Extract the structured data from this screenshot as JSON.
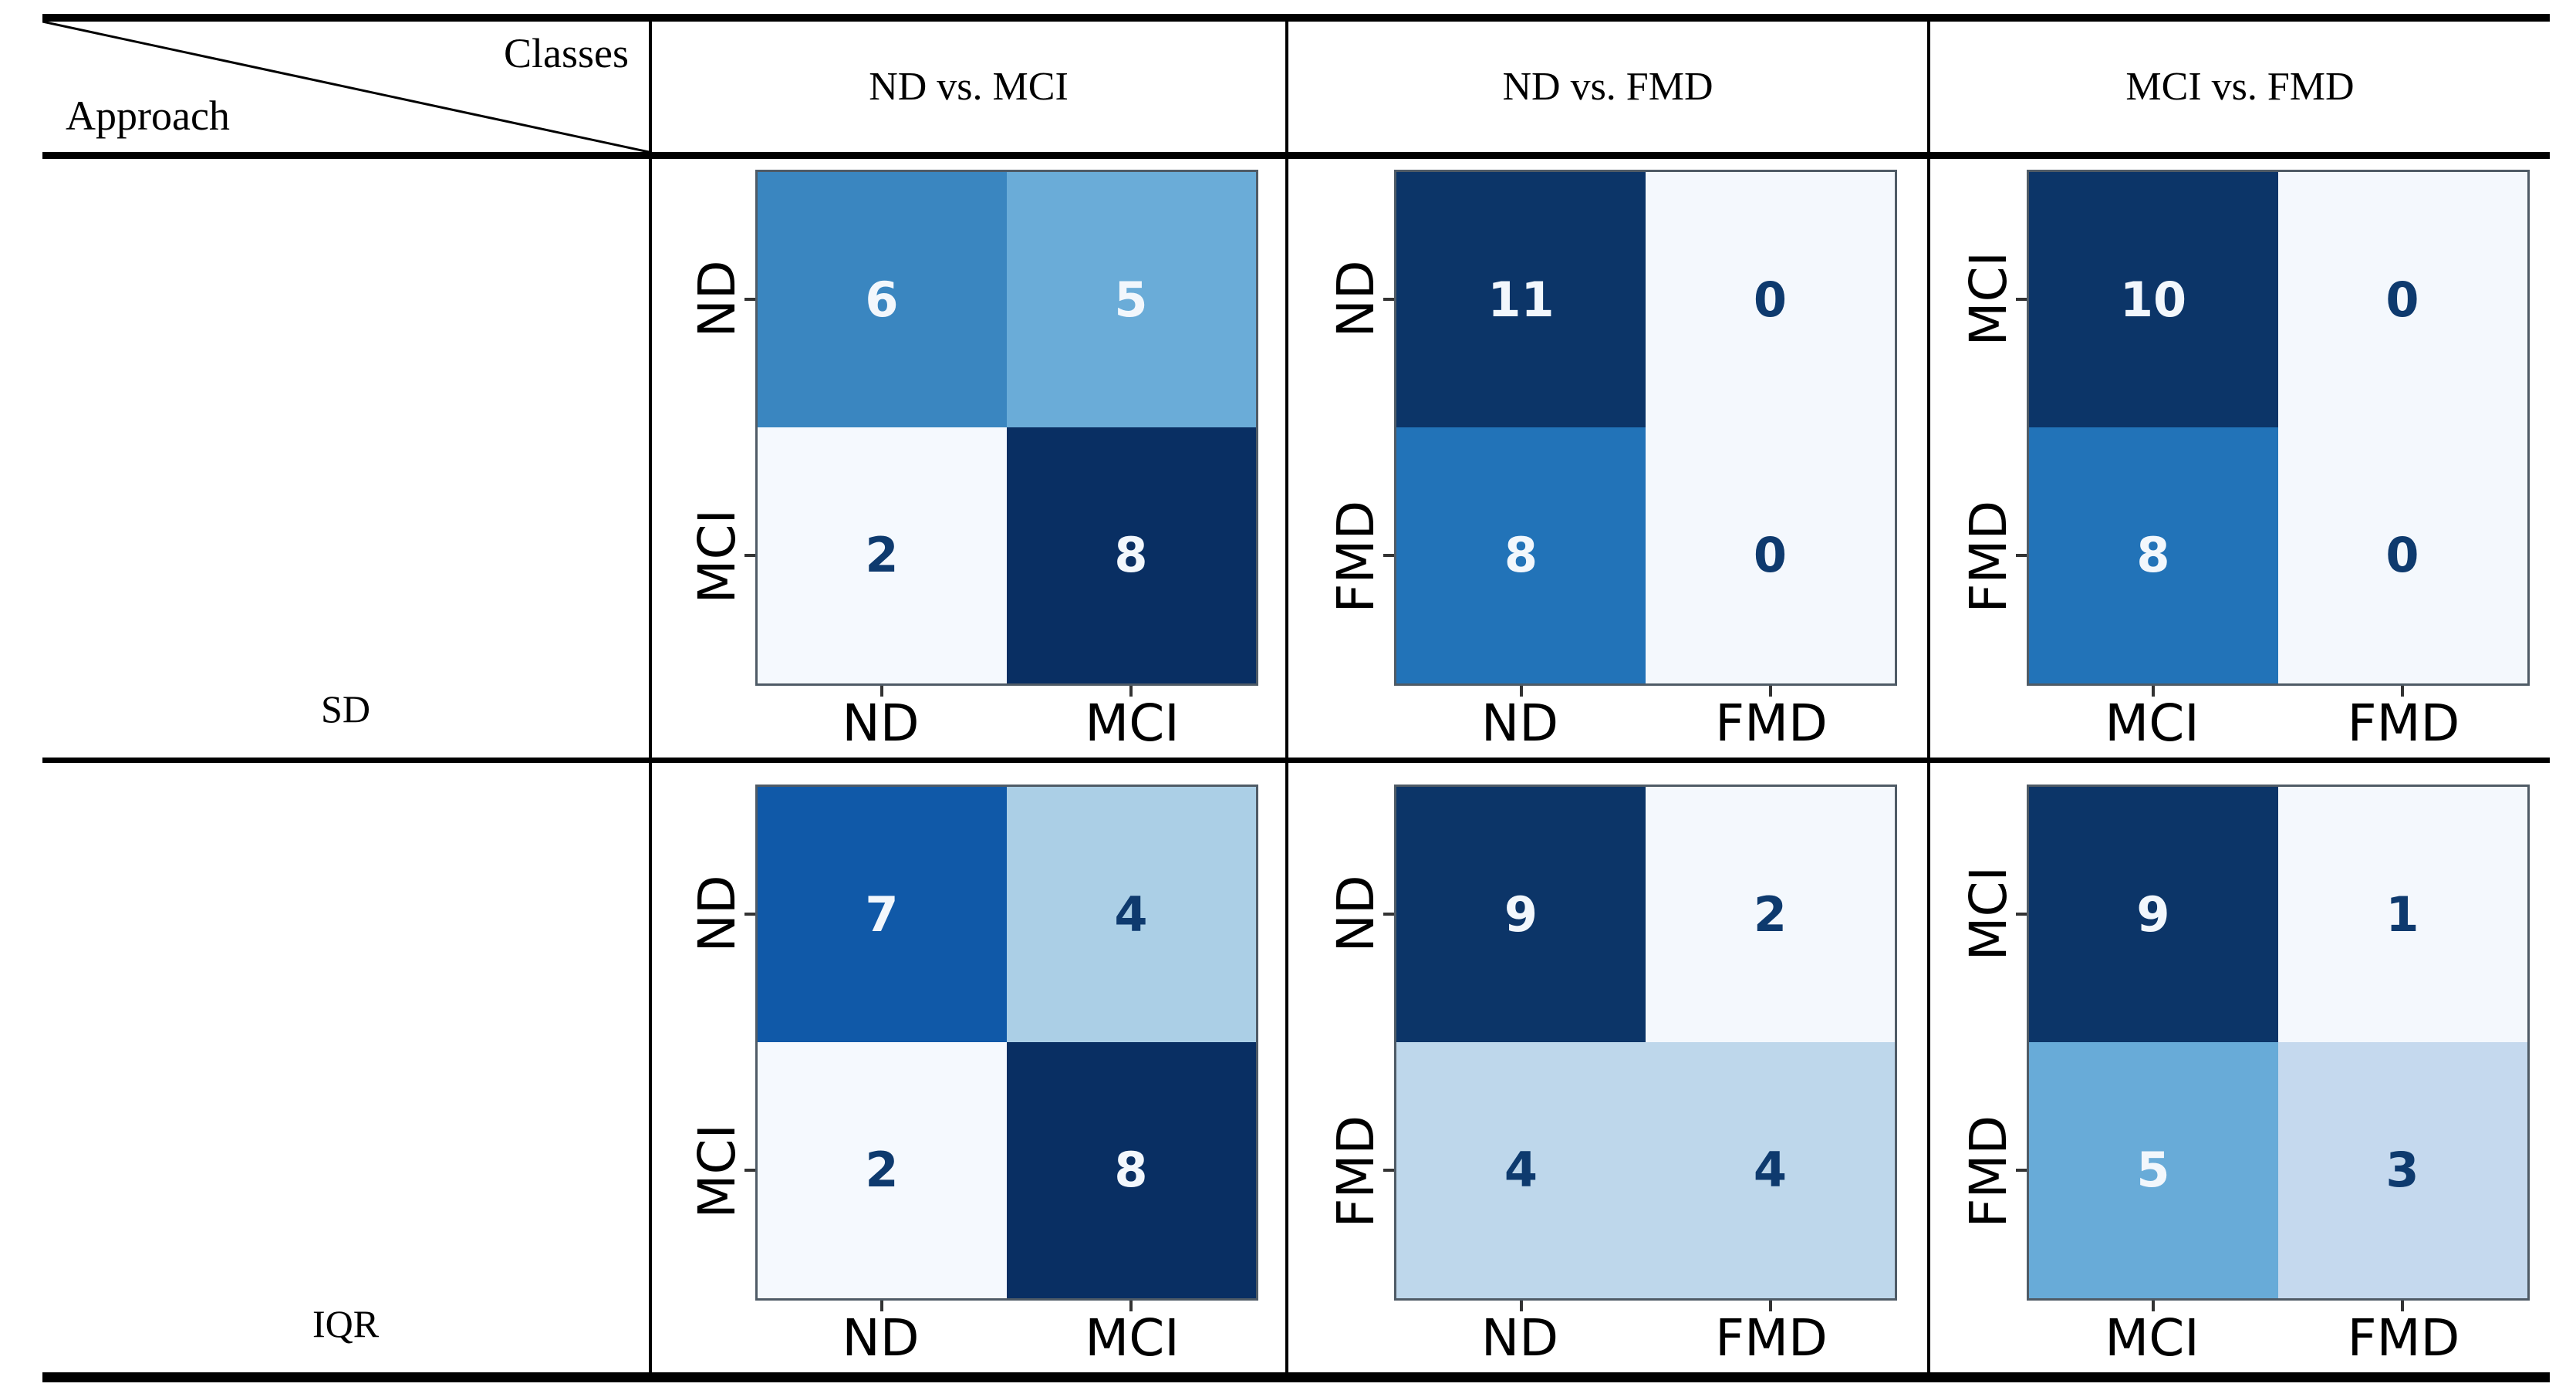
{
  "table": {
    "corner": {
      "classes_label": "Classes",
      "approach_label": "Approach"
    },
    "column_headers": [
      "ND vs. MCI",
      "ND vs. FMD",
      "MCI vs. FMD"
    ],
    "row_headers": [
      "SD",
      "IQR"
    ]
  },
  "colors": {
    "dark_text": "#0e3a6e",
    "light_text": "#f2f7fc",
    "table_border": "#000000",
    "matrix_edge": "#4f5b66"
  },
  "chart_data": [
    {
      "type": "heatmap",
      "approach": "SD",
      "comparison": "ND vs. MCI",
      "x_labels": [
        "ND",
        "MCI"
      ],
      "y_labels": [
        "ND",
        "MCI"
      ],
      "values": [
        [
          6,
          5
        ],
        [
          2,
          8
        ]
      ],
      "cell_colors": [
        [
          "#3a86c0",
          "#6aacd8"
        ],
        [
          "#f5f9fe",
          "#092f63"
        ]
      ],
      "text_colors": [
        [
          "light",
          "light"
        ],
        [
          "dark",
          "light"
        ]
      ]
    },
    {
      "type": "heatmap",
      "approach": "SD",
      "comparison": "ND vs. FMD",
      "x_labels": [
        "ND",
        "FMD"
      ],
      "y_labels": [
        "ND",
        "FMD"
      ],
      "values": [
        [
          11,
          0
        ],
        [
          8,
          0
        ]
      ],
      "cell_colors": [
        [
          "#0c3568",
          "#f4f8fd"
        ],
        [
          "#2273b8",
          "#f4f8fd"
        ]
      ],
      "text_colors": [
        [
          "light",
          "dark"
        ],
        [
          "light",
          "dark"
        ]
      ]
    },
    {
      "type": "heatmap",
      "approach": "SD",
      "comparison": "MCI vs. FMD",
      "x_labels": [
        "MCI",
        "FMD"
      ],
      "y_labels": [
        "MCI",
        "FMD"
      ],
      "values": [
        [
          10,
          0
        ],
        [
          8,
          0
        ]
      ],
      "cell_colors": [
        [
          "#0c3568",
          "#f4f8fd"
        ],
        [
          "#2273b8",
          "#f4f8fd"
        ]
      ],
      "text_colors": [
        [
          "light",
          "dark"
        ],
        [
          "light",
          "dark"
        ]
      ]
    },
    {
      "type": "heatmap",
      "approach": "IQR",
      "comparison": "ND vs. MCI",
      "x_labels": [
        "ND",
        "MCI"
      ],
      "y_labels": [
        "ND",
        "MCI"
      ],
      "values": [
        [
          7,
          4
        ],
        [
          2,
          8
        ]
      ],
      "cell_colors": [
        [
          "#1059a8",
          "#abcfe6"
        ],
        [
          "#f5f9fe",
          "#092f63"
        ]
      ],
      "text_colors": [
        [
          "light",
          "dark"
        ],
        [
          "dark",
          "light"
        ]
      ]
    },
    {
      "type": "heatmap",
      "approach": "IQR",
      "comparison": "ND vs. FMD",
      "x_labels": [
        "ND",
        "FMD"
      ],
      "y_labels": [
        "ND",
        "FMD"
      ],
      "values": [
        [
          9,
          2
        ],
        [
          4,
          4
        ]
      ],
      "cell_colors": [
        [
          "#0c3568",
          "#f4f8fd"
        ],
        [
          "#bed7eb",
          "#bed7eb"
        ]
      ],
      "text_colors": [
        [
          "light",
          "dark"
        ],
        [
          "dark",
          "dark"
        ]
      ]
    },
    {
      "type": "heatmap",
      "approach": "IQR",
      "comparison": "MCI vs. FMD",
      "x_labels": [
        "MCI",
        "FMD"
      ],
      "y_labels": [
        "MCI",
        "FMD"
      ],
      "values": [
        [
          9,
          1
        ],
        [
          5,
          3
        ]
      ],
      "cell_colors": [
        [
          "#0c3568",
          "#f4f8fd"
        ],
        [
          "#68abd8",
          "#c5d9ee"
        ]
      ],
      "text_colors": [
        [
          "light",
          "dark"
        ],
        [
          "light",
          "dark"
        ]
      ]
    }
  ]
}
